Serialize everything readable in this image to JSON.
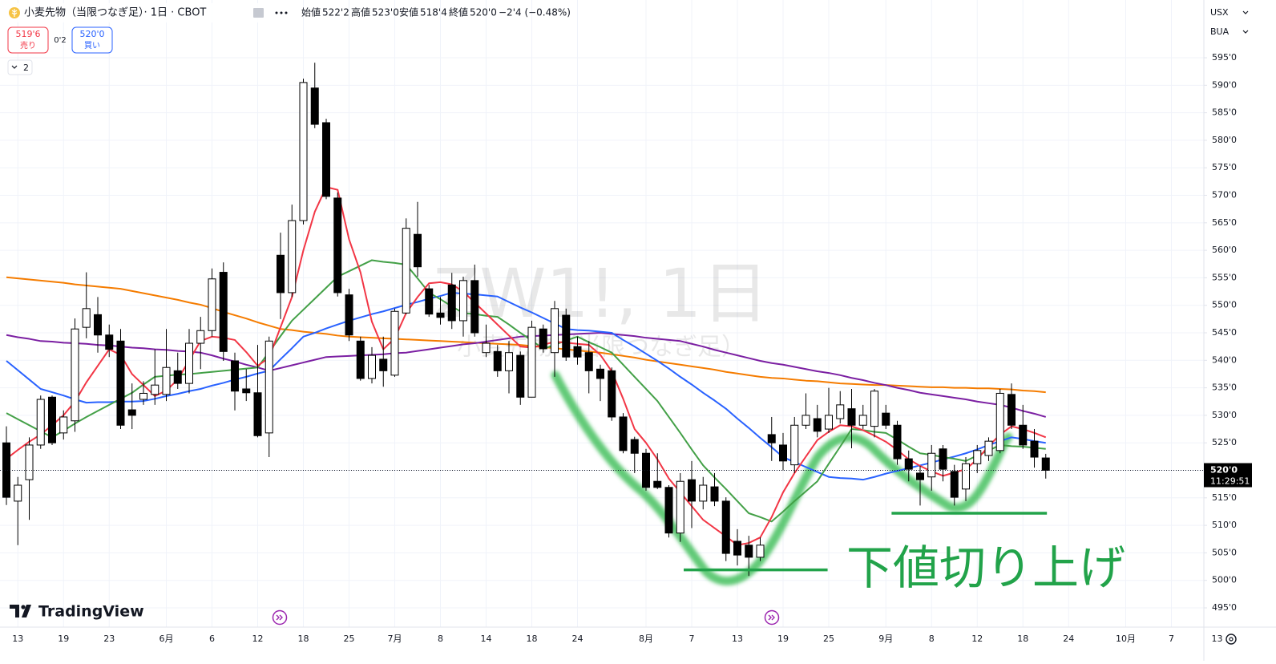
{
  "header": {
    "title": "小麦先物（当限つなぎ足）· 1日 · CBOT",
    "ohlc": [
      {
        "label": "始値",
        "value": "522'2"
      },
      {
        "label": "高値",
        "value": "523'0"
      },
      {
        "label": "安値",
        "value": "518'4"
      },
      {
        "label": "終値",
        "value": "520'0"
      }
    ],
    "change": "−2'4 (−0.48%)"
  },
  "trade": {
    "sell_price": "519'6",
    "sell": "売り",
    "spread": "0'2",
    "buy_price": "520'0",
    "buy": "買い"
  },
  "indicators_count": 2,
  "currency": "USX",
  "unit": "BUA",
  "countdown": "11:29:51",
  "logo": "TradingView",
  "chart_data": {
    "type": "candlestick",
    "watermark": {
      "symbol": "ZW1!, 1日",
      "name": "小麦先物（当限つなぎ足）"
    },
    "categories": [
      null,
      "13",
      null,
      null,
      null,
      "19",
      null,
      null,
      null,
      "23",
      null,
      null,
      null,
      null,
      "6月",
      null,
      null,
      null,
      "6",
      null,
      null,
      null,
      "12",
      null,
      null,
      null,
      "18",
      null,
      null,
      null,
      "25",
      null,
      null,
      null,
      "7月",
      null,
      null,
      null,
      "8",
      null,
      null,
      null,
      "14",
      null,
      null,
      null,
      "18",
      null,
      null,
      null,
      "24",
      null,
      null,
      null,
      null,
      null,
      "8月",
      null,
      null,
      null,
      "7",
      null,
      null,
      null,
      "13",
      null,
      null,
      null,
      "19",
      null,
      null,
      null,
      "25",
      null,
      null,
      null,
      null,
      "9月",
      null,
      null,
      null,
      "8",
      null,
      null,
      null,
      "12",
      null,
      null,
      null,
      "18",
      null,
      null,
      null,
      "24",
      null,
      null,
      null,
      null,
      "10月",
      null,
      null,
      null,
      "7",
      null,
      null,
      null,
      "13"
    ],
    "open": [
      525,
      514.4,
      518.3,
      524.6,
      533.3,
      526.8,
      529,
      546,
      548.3,
      544.6,
      543.5,
      531,
      532.9,
      533.8,
      533.8,
      538.1,
      535.8,
      543.1,
      545.4,
      556,
      539.9,
      534.8,
      534.1,
      526.8,
      559.1,
      552.3,
      565.4,
      589.5,
      583.2,
      569.5,
      551.9,
      543.5,
      536.7,
      540.2,
      537.3,
      548.6,
      562.9,
      553,
      548.6,
      553.7,
      547.2,
      554.5,
      541.4,
      541.6,
      538.1,
      540.9,
      533.3,
      545.7,
      541.4,
      548.2,
      542.5,
      541.4,
      538.4,
      538.1,
      529.7,
      525.6,
      523.1,
      518,
      516.9,
      508.6,
      518.3,
      514.4,
      517,
      514.4,
      507.1,
      506.4,
      504.2,
      526.5,
      524.6,
      521,
      528.2,
      529.4,
      527.5,
      529.4,
      531.2,
      528.2,
      528,
      530.4,
      528.2,
      522.1,
      519.5,
      518.8,
      523.9,
      519.8,
      516.6,
      521.2,
      522.7,
      523.6,
      533.8,
      528.2,
      525.3,
      522.25,
      null,
      null,
      null,
      null,
      null,
      null,
      null,
      null,
      null,
      null,
      null,
      null,
      null,
      null,
      null
    ],
    "high": [
      528,
      518.8,
      526,
      533.6,
      533.6,
      530.9,
      547.6,
      556,
      551.5,
      546.5,
      545.7,
      535.8,
      536.2,
      542,
      545.7,
      541.4,
      545.7,
      547.9,
      556.7,
      557.8,
      541.4,
      538.4,
      542.8,
      544.3,
      563.2,
      568.3,
      591.2,
      594.1,
      583.9,
      570.5,
      553,
      544.3,
      542.4,
      544.3,
      549.4,
      565.8,
      568.8,
      553.7,
      551.5,
      555.9,
      555.2,
      557.4,
      546.5,
      542.8,
      543.5,
      541.6,
      547.2,
      546.5,
      550.8,
      549.4,
      544.3,
      543.5,
      539.2,
      538.7,
      530.4,
      526.1,
      523.9,
      523.1,
      517.3,
      519.5,
      521.7,
      518.8,
      519.5,
      515.1,
      509.3,
      508.1,
      507.8,
      529.7,
      526.8,
      529.7,
      534,
      531.9,
      535,
      534.4,
      534.8,
      531.9,
      534.8,
      531.9,
      529,
      523.6,
      520.8,
      524.6,
      524.6,
      521,
      522.4,
      524.6,
      526,
      534.8,
      535.8,
      531.9,
      527.5,
      523,
      null,
      null,
      null,
      null,
      null,
      null,
      null,
      null,
      null,
      null,
      null,
      null,
      null,
      null,
      null
    ],
    "low": [
      513.7,
      506.4,
      511,
      523.9,
      524.6,
      525.6,
      527,
      544,
      541.4,
      540.6,
      527.5,
      527.5,
      531.9,
      531.9,
      532.6,
      534.8,
      534,
      538.4,
      544.3,
      539.9,
      530.9,
      532.6,
      526,
      522.4,
      547.5,
      551.5,
      564.7,
      582.2,
      569.3,
      551.6,
      543.5,
      536.3,
      535.8,
      535.2,
      537,
      548.4,
      555.2,
      547.9,
      546.5,
      545.7,
      544.3,
      544.3,
      540.6,
      537,
      534,
      531.9,
      533.3,
      541.4,
      537,
      539.9,
      539.2,
      534,
      532.6,
      529,
      523.1,
      519.5,
      516.3,
      516.6,
      507.8,
      507,
      509.5,
      512.9,
      513.5,
      503.5,
      502.7,
      500.8,
      503.5,
      521.7,
      520,
      519.5,
      527.5,
      526,
      526.8,
      528.5,
      524,
      527.5,
      526,
      527.5,
      521,
      518,
      513.6,
      516.3,
      518,
      513.6,
      514.4,
      519.5,
      521.7,
      523.1,
      527.5,
      523.9,
      520.5,
      518.5,
      null,
      null,
      null,
      null,
      null,
      null,
      null,
      null,
      null,
      null,
      null,
      null,
      null,
      null,
      null
    ],
    "close": [
      515.1,
      517.3,
      524.6,
      532.9,
      525,
      529.7,
      545.7,
      549.4,
      544.6,
      542,
      528.2,
      530,
      534,
      535.5,
      538.7,
      535.8,
      543.1,
      545.4,
      554.8,
      541.6,
      534.4,
      534.1,
      526.3,
      543.5,
      552.3,
      565.4,
      590.5,
      582.9,
      569.8,
      552.3,
      544.6,
      536.7,
      540.9,
      538.1,
      548.9,
      564,
      557,
      548.4,
      547.8,
      547.2,
      554.5,
      545,
      543.1,
      538.1,
      541.4,
      533.3,
      546,
      542.1,
      549.4,
      540.6,
      540.6,
      538.1,
      536.7,
      529.7,
      523.6,
      523.1,
      516.9,
      516.9,
      508.6,
      518,
      514.4,
      517.3,
      514.4,
      504.9,
      504.6,
      504.2,
      506.4,
      525,
      521.7,
      528.2,
      530,
      527.1,
      530,
      531.9,
      528.2,
      530,
      534.4,
      528.2,
      522.1,
      520.2,
      518.3,
      523.1,
      520.2,
      515.1,
      521.2,
      523.6,
      525.3,
      534,
      528.2,
      524.6,
      522.4,
      520,
      null,
      null,
      null,
      null,
      null,
      null,
      null,
      null,
      null,
      null,
      null,
      null,
      null,
      null,
      null
    ],
    "series": [
      {
        "color": "#f57c00",
        "values": [
          555.1,
          554.9,
          554.7,
          554.5,
          554.3,
          554.1,
          553.8,
          553.6,
          553.4,
          553.2,
          553.0,
          552.6,
          552.2,
          551.8,
          551.4,
          551.0,
          550.5,
          550.1,
          549.5,
          548.8,
          548.2,
          547.6,
          546.9,
          546.3,
          545.7,
          545.5,
          545.2,
          545.0,
          544.8,
          544.5,
          544.3,
          544.2,
          544.1,
          544.0,
          543.9,
          543.8,
          543.7,
          543.6,
          543.5,
          543.4,
          543.3,
          543.2,
          543.1,
          543.0,
          542.9,
          542.8,
          542.6,
          542.4,
          542.2,
          542.0,
          541.8,
          541.6,
          541.4,
          541.1,
          540.8,
          540.5,
          540.1,
          539.8,
          539.5,
          539.2,
          538.9,
          538.6,
          538.3,
          537.9,
          537.6,
          537.3,
          537.0,
          536.8,
          536.7,
          536.5,
          536.3,
          536.2,
          536.0,
          535.8,
          535.7,
          535.6,
          535.5,
          535.5,
          535.4,
          535.3,
          535.2,
          535.1,
          535.1,
          535.0,
          535.0,
          534.9,
          534.9,
          534.8,
          534.7,
          534.5,
          534.4,
          534.2,
          null,
          null,
          null,
          null,
          null,
          null,
          null,
          null,
          null,
          null,
          null,
          null,
          null,
          null,
          null
        ]
      },
      {
        "color": "#7b1fa2",
        "values": [
          544.6,
          544.2,
          543.9,
          543.5,
          543.4,
          543.2,
          543.1,
          543.0,
          542.8,
          542.7,
          542.5,
          542.3,
          542.2,
          542.0,
          541.9,
          541.7,
          541.6,
          541.4,
          540.9,
          540.3,
          539.8,
          539.2,
          538.7,
          538.1,
          538.6,
          539.1,
          539.6,
          540.1,
          540.6,
          540.7,
          540.8,
          540.9,
          541.0,
          541.1,
          541.3,
          541.4,
          541.7,
          542.0,
          542.3,
          542.6,
          542.9,
          543.1,
          543.4,
          543.7,
          544.0,
          544.3,
          544.4,
          544.5,
          544.6,
          544.7,
          544.8,
          544.9,
          545.0,
          544.8,
          544.6,
          544.4,
          544.1,
          543.9,
          543.7,
          543.5,
          543.0,
          542.5,
          541.9,
          541.4,
          540.9,
          540.4,
          539.9,
          539.5,
          539.2,
          538.8,
          538.4,
          538.0,
          537.7,
          537.3,
          536.8,
          536.4,
          535.9,
          535.5,
          535.0,
          534.6,
          534.1,
          533.8,
          533.5,
          533.2,
          532.9,
          532.5,
          532.2,
          531.9,
          531.4,
          530.8,
          530.3,
          529.7,
          null,
          null,
          null,
          null,
          null,
          null,
          null,
          null,
          null,
          null,
          null,
          null,
          null,
          null,
          null
        ]
      },
      {
        "color": "#2962ff",
        "values": [
          539.9,
          538.2,
          536.5,
          534.8,
          534.2,
          533.6,
          532.9,
          532.3,
          532.4,
          532.4,
          532.5,
          532.5,
          532.6,
          533.0,
          533.5,
          533.9,
          534.4,
          534.8,
          535.4,
          535.9,
          536.5,
          537.0,
          537.6,
          538.1,
          540.2,
          542.2,
          544.3,
          545.0,
          545.8,
          546.5,
          547.2,
          547.8,
          548.4,
          548.9,
          549.5,
          550.1,
          550.6,
          551.2,
          551.7,
          552.3,
          552.1,
          552.0,
          551.8,
          551.6,
          550.6,
          549.6,
          548.7,
          547.7,
          546.7,
          545.7,
          545.5,
          545.4,
          545.2,
          545.0,
          543.7,
          542.5,
          541.2,
          539.9,
          538.5,
          537.0,
          535.6,
          534.1,
          532.7,
          531.2,
          529.4,
          527.7,
          525.9,
          524.2,
          522.4,
          521.5,
          520.6,
          519.7,
          518.8,
          518.6,
          518.5,
          518.3,
          518.8,
          519.4,
          519.9,
          520.4,
          520.9,
          521.4,
          522.0,
          522.5,
          523.1,
          523.8,
          524.6,
          525.3,
          526.0,
          525.7,
          525.3,
          525.0,
          null,
          null,
          null,
          null,
          null,
          null,
          null,
          null,
          null,
          null,
          null,
          null,
          null,
          null,
          null
        ]
      },
      {
        "color": "#43a047",
        "values": [
          530.4,
          529.3,
          528.2,
          527.1,
          526.0,
          527.2,
          528.5,
          529.7,
          530.8,
          531.9,
          533.0,
          534.1,
          535.6,
          537.0,
          537.2,
          537.4,
          537.5,
          537.7,
          537.9,
          538.1,
          538.3,
          538.5,
          538.7,
          541.5,
          544.4,
          547.2,
          549.2,
          551.2,
          553.2,
          555.2,
          556.2,
          557.2,
          558.2,
          557.9,
          557.7,
          557.4,
          554.9,
          552.3,
          551.1,
          549.8,
          548.6,
          548.4,
          548.1,
          547.9,
          546.5,
          545.0,
          543.6,
          542.1,
          542.8,
          543.6,
          544.3,
          543.3,
          542.4,
          541.4,
          539.2,
          537.0,
          534.8,
          532.6,
          529.7,
          526.8,
          523.8,
          520.9,
          518.7,
          516.6,
          514.4,
          512.2,
          511.5,
          510.7,
          512.5,
          514.4,
          516.2,
          518.0,
          521.2,
          524.3,
          527.5,
          527.3,
          527.0,
          526.8,
          525.6,
          524.3,
          523.1,
          522.8,
          522.4,
          522.1,
          521.7,
          522.7,
          523.6,
          524.6,
          524.4,
          524.3,
          524.1,
          523.9,
          null,
          null,
          null,
          null,
          null,
          null,
          null,
          null,
          null,
          null,
          null,
          null,
          null,
          null,
          null
        ]
      },
      {
        "color": "#f23645",
        "values": [
          522.1,
          523.7,
          525.2,
          526.5,
          528.2,
          530,
          532.5,
          536,
          539,
          542,
          541,
          537.5,
          535.5,
          533.5,
          534.5,
          536.5,
          540,
          543.5,
          544.3,
          544.1,
          543.7,
          541.5,
          539,
          540.5,
          546,
          551.5,
          560,
          567,
          571.5,
          571,
          562,
          556,
          547,
          542,
          544,
          548.6,
          551.5,
          554,
          554.2,
          553.8,
          552.5,
          550.5,
          548.5,
          546.5,
          544.5,
          542.5,
          542.3,
          542.8,
          543.4,
          543.2,
          543,
          542.8,
          541,
          538,
          533,
          527.5,
          525,
          522,
          518.5,
          516,
          513.5,
          511,
          509.5,
          508,
          506.4,
          506.8,
          507.8,
          511.5,
          516,
          519.5,
          522.5,
          525.5,
          527,
          528.2,
          528,
          527.3,
          526.3,
          525.2,
          523.7,
          522,
          520.8,
          519.8,
          519,
          519.6,
          520.2,
          522,
          524.4,
          526.5,
          528,
          527.5,
          526.8,
          526,
          null,
          null,
          null,
          null,
          null,
          null,
          null,
          null,
          null,
          null,
          null,
          null,
          null,
          null,
          null
        ]
      }
    ],
    "ylim": [
      491.5,
      605.5
    ],
    "yticks": [
      {
        "value": 495,
        "label": "495'0"
      },
      {
        "value": 500,
        "label": "500'0"
      },
      {
        "value": 505,
        "label": "505'0"
      },
      {
        "value": 510,
        "label": "510'0"
      },
      {
        "value": 515,
        "label": "515'0"
      },
      {
        "value": 520,
        "label": "520'0"
      },
      {
        "value": 525,
        "label": "525'0"
      },
      {
        "value": 530,
        "label": "530'0"
      },
      {
        "value": 535,
        "label": "535'0"
      },
      {
        "value": 540,
        "label": "540'0"
      },
      {
        "value": 545,
        "label": "545'0"
      },
      {
        "value": 550,
        "label": "550'0"
      },
      {
        "value": 555,
        "label": "555'0"
      },
      {
        "value": 560,
        "label": "560'0"
      },
      {
        "value": 565,
        "label": "565'0"
      },
      {
        "value": 570,
        "label": "570'0"
      },
      {
        "value": 575,
        "label": "575'0"
      },
      {
        "value": 580,
        "label": "580'0"
      },
      {
        "value": 585,
        "label": "585'0"
      },
      {
        "value": 590,
        "label": "590'0"
      },
      {
        "value": 595,
        "label": "595'0"
      }
    ],
    "grid": true,
    "up_color": "#ffffff",
    "down_color": "#000000",
    "last_price": {
      "value": 520,
      "label": "520'0"
    },
    "annotation": {
      "text": "下値切り上げ",
      "color": "#22a34a",
      "lines": [
        {
          "value": 501.9,
          "from": 59.3,
          "to": 71.9
        },
        {
          "value": 512.2,
          "from": 77.5,
          "to": 91.1
        }
      ]
    }
  }
}
